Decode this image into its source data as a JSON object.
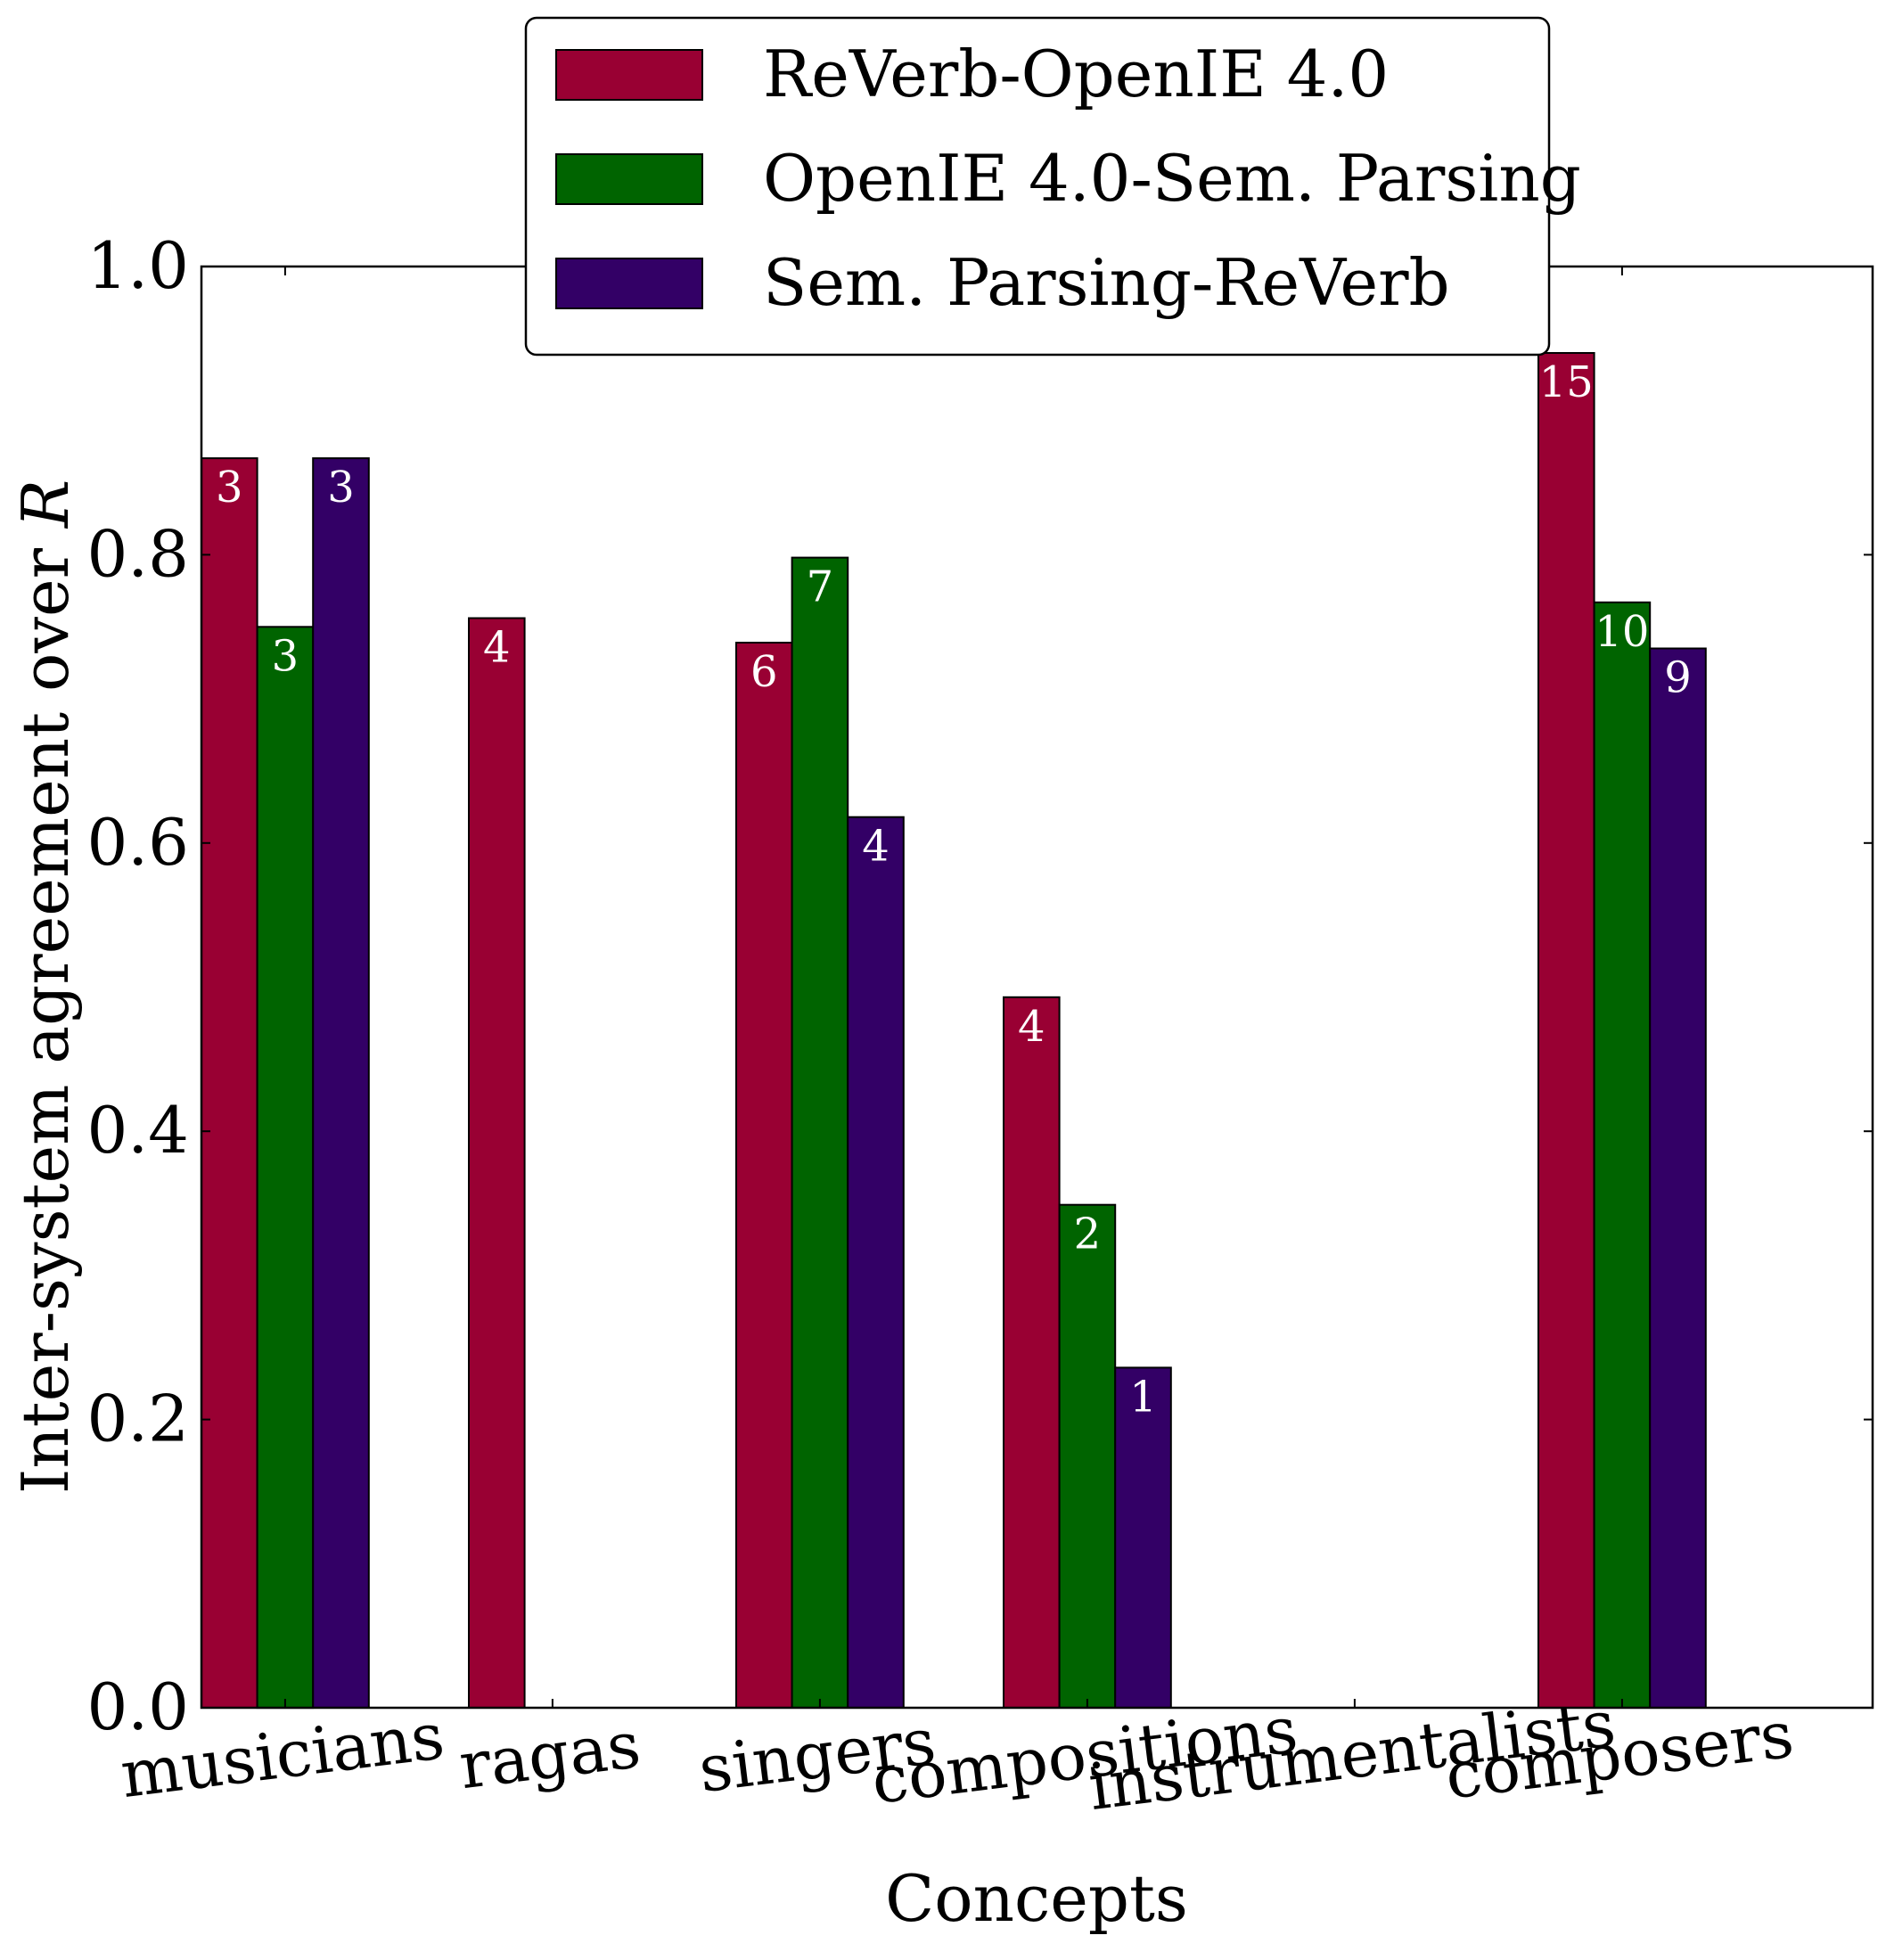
{
  "chart_data": {
    "type": "bar",
    "xlabel": "Concepts",
    "ylabel": "Inter-system agreement over R",
    "ylim": [
      0,
      1.0
    ],
    "yticks": [
      "0.0",
      "0.2",
      "0.4",
      "0.6",
      "0.8",
      "1.0"
    ],
    "categories": [
      "musicians",
      "ragas",
      "singers",
      "compositions",
      "instrumentalists",
      "composers"
    ],
    "grid": false,
    "legend_position": "top-center",
    "series": [
      {
        "name": "ReVerb-OpenIE 4.0",
        "color": "#990033",
        "values": [
          0.867,
          0.756,
          0.739,
          0.493,
          null,
          0.94
        ],
        "labels": [
          "3",
          "4",
          "6",
          "4",
          "",
          "15"
        ]
      },
      {
        "name": "OpenIE 4.0-Sem. Parsing",
        "color": "#006400",
        "values": [
          0.75,
          null,
          0.798,
          0.349,
          null,
          0.767
        ],
        "labels": [
          "3",
          "",
          "7",
          "2",
          "",
          "10"
        ]
      },
      {
        "name": "Sem. Parsing-ReVerb",
        "color": "#330066",
        "values": [
          0.867,
          null,
          0.618,
          0.236,
          null,
          0.735
        ],
        "labels": [
          "3",
          "",
          "4",
          "1",
          "",
          "9"
        ]
      }
    ]
  }
}
